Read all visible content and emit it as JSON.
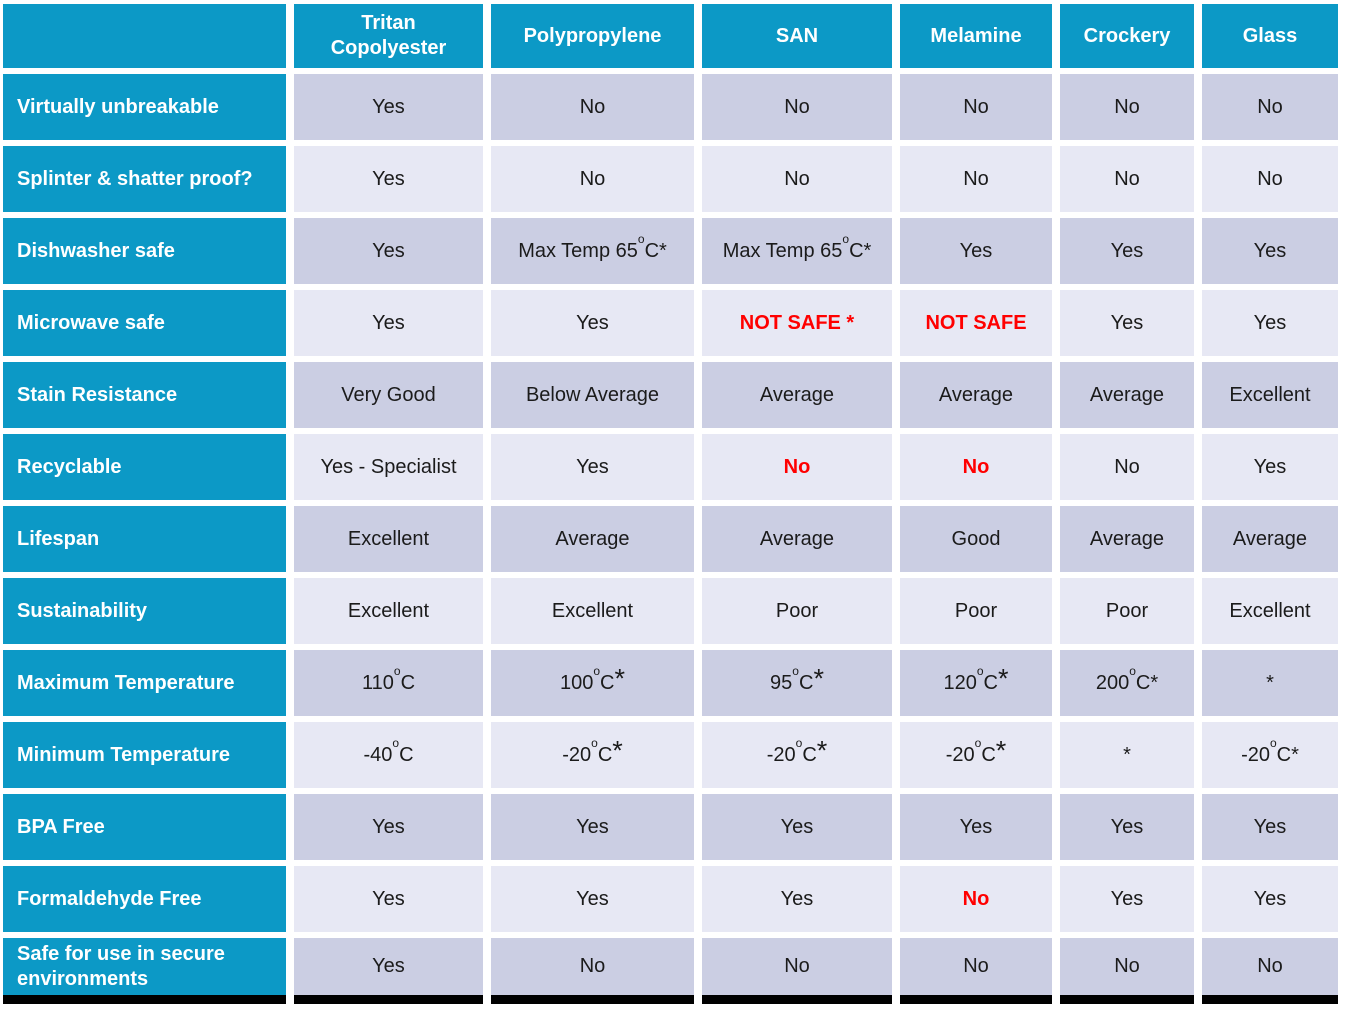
{
  "colors": {
    "header_bg": "#0c99c6",
    "row_dark": "#cbcee3",
    "row_light": "#e7e8f4",
    "header_text": "#ffffff",
    "cell_text": "#1b1b1b",
    "alert": "#ff0000",
    "bottom_bar": "#000000"
  },
  "table": {
    "columns": [
      {
        "label": ""
      },
      {
        "label": "Tritan Copolyester"
      },
      {
        "label": "Polypropylene"
      },
      {
        "label": "SAN"
      },
      {
        "label": "Melamine"
      },
      {
        "label": "Crockery"
      },
      {
        "label": "Glass"
      }
    ],
    "rows": [
      {
        "label": "Virtually unbreakable",
        "cells": [
          {
            "text": "Yes"
          },
          {
            "text": "No"
          },
          {
            "text": "No"
          },
          {
            "text": "No"
          },
          {
            "text": "No"
          },
          {
            "text": "No"
          }
        ]
      },
      {
        "label": "Splinter & shatter proof?",
        "cells": [
          {
            "text": "Yes"
          },
          {
            "text": "No"
          },
          {
            "text": "No"
          },
          {
            "text": "No"
          },
          {
            "text": "No"
          },
          {
            "text": "No"
          }
        ]
      },
      {
        "label": "Dishwasher safe",
        "cells": [
          {
            "text": "Yes"
          },
          {
            "text": "Max Temp 65{o}C*"
          },
          {
            "text": "Max Temp 65{o}C*"
          },
          {
            "text": "Yes"
          },
          {
            "text": "Yes"
          },
          {
            "text": "Yes"
          }
        ]
      },
      {
        "label": "Microwave safe",
        "cells": [
          {
            "text": "Yes"
          },
          {
            "text": "Yes"
          },
          {
            "text": "NOT SAFE *",
            "red": true
          },
          {
            "text": "NOT SAFE",
            "red": true
          },
          {
            "text": "Yes"
          },
          {
            "text": "Yes"
          }
        ]
      },
      {
        "label": "Stain Resistance",
        "cells": [
          {
            "text": "Very Good"
          },
          {
            "text": "Below Average"
          },
          {
            "text": "Average"
          },
          {
            "text": "Average"
          },
          {
            "text": "Average"
          },
          {
            "text": "Excellent"
          }
        ]
      },
      {
        "label": "Recyclable",
        "cells": [
          {
            "text": "Yes - Specialist"
          },
          {
            "text": "Yes"
          },
          {
            "text": "No",
            "red": true
          },
          {
            "text": "No",
            "red": true
          },
          {
            "text": "No"
          },
          {
            "text": "Yes"
          }
        ]
      },
      {
        "label": "Lifespan",
        "cells": [
          {
            "text": "Excellent"
          },
          {
            "text": "Average"
          },
          {
            "text": "Average"
          },
          {
            "text": "Good"
          },
          {
            "text": "Average"
          },
          {
            "text": "Average"
          }
        ]
      },
      {
        "label": "Sustainability",
        "cells": [
          {
            "text": "Excellent"
          },
          {
            "text": "Excellent"
          },
          {
            "text": "Poor"
          },
          {
            "text": "Poor"
          },
          {
            "text": "Poor"
          },
          {
            "text": "Excellent"
          }
        ]
      },
      {
        "label": "Maximum Temperature",
        "cells": [
          {
            "text": "110{o}C"
          },
          {
            "text": "100{o}C{*}"
          },
          {
            "text": "95{o}C{*}"
          },
          {
            "text": "120{o}C{*}"
          },
          {
            "text": "200{o}C*"
          },
          {
            "text": "*"
          }
        ]
      },
      {
        "label": "Minimum Temperature",
        "cells": [
          {
            "text": "-40{o}C"
          },
          {
            "text": "-20{o}C{*}"
          },
          {
            "text": "-20{o}C{*}"
          },
          {
            "text": "-20{o}C{*}"
          },
          {
            "text": "*"
          },
          {
            "text": "-20{o}C*"
          }
        ]
      },
      {
        "label": "BPA Free",
        "cells": [
          {
            "text": "Yes"
          },
          {
            "text": "Yes"
          },
          {
            "text": "Yes"
          },
          {
            "text": "Yes"
          },
          {
            "text": "Yes"
          },
          {
            "text": "Yes"
          }
        ]
      },
      {
        "label": "Formaldehyde Free",
        "cells": [
          {
            "text": "Yes"
          },
          {
            "text": "Yes"
          },
          {
            "text": "Yes"
          },
          {
            "text": "No",
            "red": true
          },
          {
            "text": "Yes"
          },
          {
            "text": "Yes"
          }
        ]
      },
      {
        "label": "Safe for use in secure environments",
        "cells": [
          {
            "text": "Yes"
          },
          {
            "text": "No"
          },
          {
            "text": "No"
          },
          {
            "text": "No"
          },
          {
            "text": "No"
          },
          {
            "text": "No"
          }
        ]
      }
    ]
  }
}
